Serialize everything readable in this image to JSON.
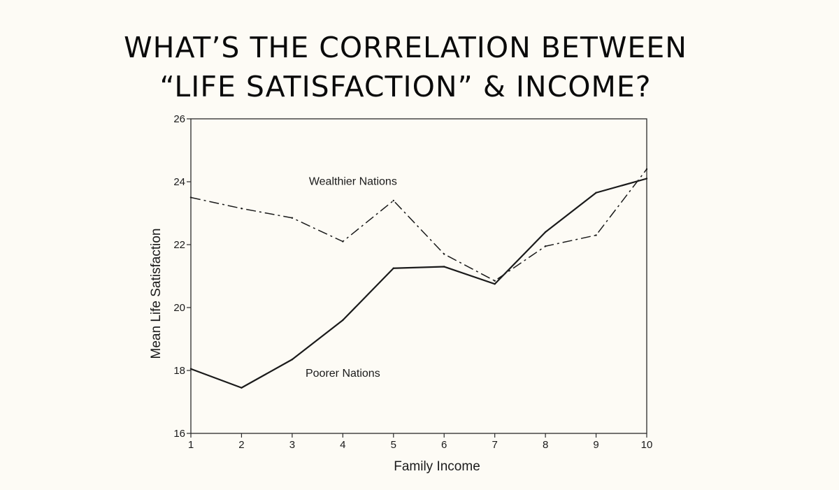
{
  "slide": {
    "title_line1": "WHAT’S THE CORRELATION BETWEEN",
    "title_line2": "“LIFE SATISFACTION” & INCOME?"
  },
  "chart_data": {
    "type": "line",
    "title": "",
    "xlabel": "Family Income",
    "ylabel": "Mean Life Satisfaction",
    "x": [
      1,
      2,
      3,
      4,
      5,
      6,
      7,
      8,
      9,
      10
    ],
    "xticks": [
      "1",
      "2",
      "3",
      "4",
      "5",
      "6",
      "7",
      "8",
      "9",
      "10"
    ],
    "yticks": [
      "16",
      "18",
      "20",
      "22",
      "24",
      "26"
    ],
    "ytick_values": [
      16,
      18,
      20,
      22,
      24,
      26
    ],
    "xlim": [
      1,
      10
    ],
    "ylim": [
      16,
      26
    ],
    "grid": false,
    "series": [
      {
        "name": "Wealthier Nations",
        "line_style": "dash-dot",
        "label_anchor": [
          4.2,
          23.9
        ],
        "values": [
          23.5,
          23.15,
          22.85,
          22.1,
          23.4,
          21.7,
          20.85,
          21.95,
          22.3,
          24.4
        ]
      },
      {
        "name": "Poorer Nations",
        "line_style": "solid",
        "label_anchor": [
          4.0,
          17.8
        ],
        "values": [
          18.05,
          17.45,
          18.35,
          19.6,
          21.25,
          21.3,
          20.75,
          22.4,
          23.65,
          24.1
        ]
      }
    ],
    "colors": {
      "line": "#1a1a1a",
      "frame": "#2a2a2a"
    }
  }
}
